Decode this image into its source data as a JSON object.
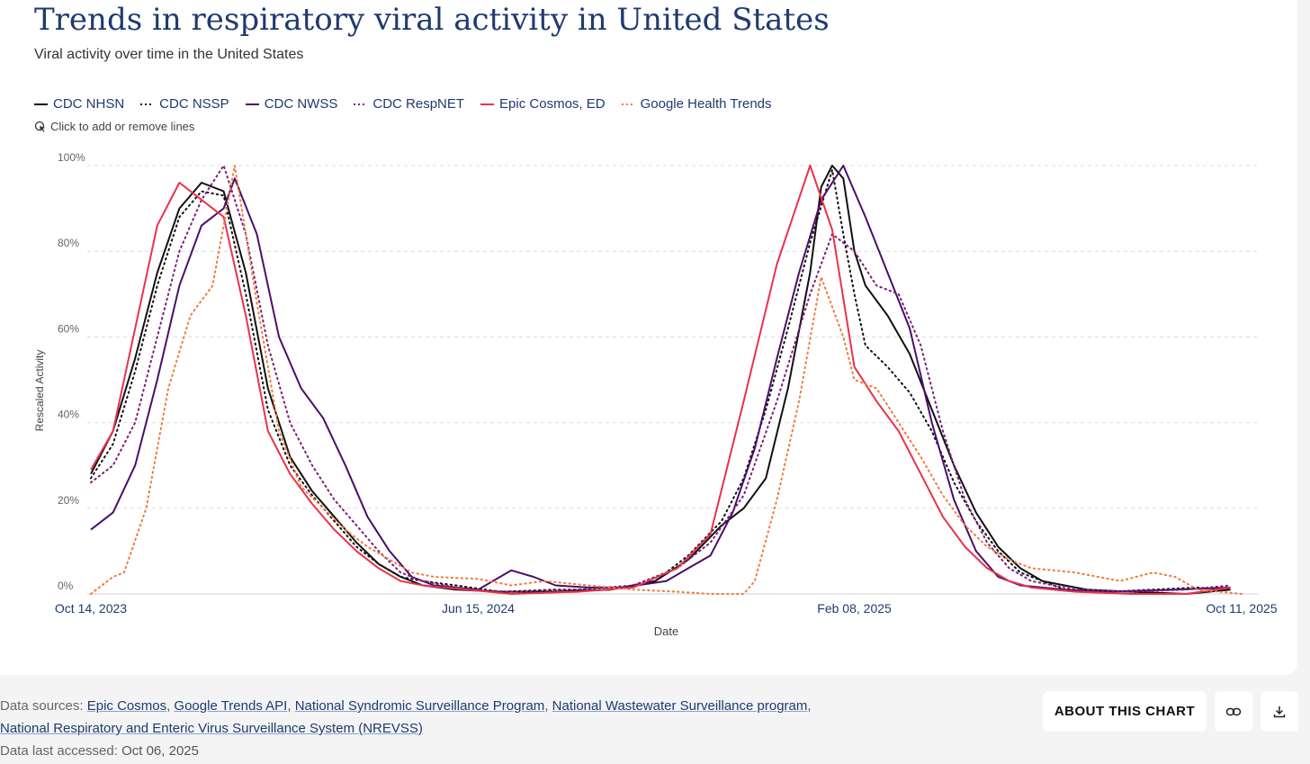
{
  "header": {
    "title": "Trends in respiratory viral activity in United States",
    "subtitle": "Viral activity over time in the United States",
    "hint": "Click to add or remove lines"
  },
  "footer": {
    "sources_label": "Data sources:",
    "sources": [
      "Epic Cosmos",
      "Google Trends API",
      "National Syndromic Surveillance Program",
      "National Wastewater Surveillance program",
      "National Respiratory and Enteric Virus Surveillance System (NREVSS)"
    ],
    "accessed_label": "Data last accessed:",
    "accessed_value": "Oct 06, 2025",
    "about_label": "ABOUT THIS CHART"
  },
  "icons": {
    "hint": "cursor-click-icon",
    "link": "link-icon",
    "download": "download-icon"
  },
  "chart_data": {
    "type": "line",
    "xlabel": "Date",
    "ylabel": "Rescaled Activity",
    "x_ticks": [
      "Oct 14, 2023",
      "Jun 15, 2024",
      "Feb 08, 2025",
      "Oct 11, 2025"
    ],
    "y_ticks": [
      "0%",
      "20%",
      "40%",
      "60%",
      "80%",
      "100%"
    ],
    "ylim": [
      0,
      100
    ],
    "xlim": [
      "2023-10-14",
      "2025-10-11"
    ],
    "grid": "horizontal dashed",
    "legend_position": "top-left",
    "series": [
      {
        "name": "CDC NHSN",
        "color": "#111111",
        "dash": "solid",
        "points": [
          [
            "2023-10-14",
            28
          ],
          [
            "2023-10-28",
            38
          ],
          [
            "2023-11-11",
            55
          ],
          [
            "2023-11-25",
            75
          ],
          [
            "2023-12-09",
            90
          ],
          [
            "2023-12-23",
            96
          ],
          [
            "2024-01-06",
            94
          ],
          [
            "2024-01-20",
            75
          ],
          [
            "2024-02-03",
            48
          ],
          [
            "2024-02-17",
            32
          ],
          [
            "2024-03-02",
            24
          ],
          [
            "2024-03-16",
            18
          ],
          [
            "2024-03-30",
            12
          ],
          [
            "2024-04-13",
            7
          ],
          [
            "2024-04-27",
            4
          ],
          [
            "2024-05-11",
            2
          ],
          [
            "2024-06-01",
            1
          ],
          [
            "2024-06-29",
            0.5
          ],
          [
            "2024-08-03",
            0.5
          ],
          [
            "2024-09-07",
            1
          ],
          [
            "2024-10-05",
            3
          ],
          [
            "2024-10-26",
            8
          ],
          [
            "2024-11-16",
            16
          ],
          [
            "2024-11-30",
            20
          ],
          [
            "2024-12-14",
            27
          ],
          [
            "2024-12-28",
            48
          ],
          [
            "2025-01-11",
            75
          ],
          [
            "2025-01-18",
            95
          ],
          [
            "2025-01-25",
            100
          ],
          [
            "2025-02-01",
            97
          ],
          [
            "2025-02-08",
            80
          ],
          [
            "2025-02-15",
            72
          ],
          [
            "2025-03-01",
            65
          ],
          [
            "2025-03-15",
            56
          ],
          [
            "2025-03-29",
            43
          ],
          [
            "2025-04-12",
            30
          ],
          [
            "2025-04-26",
            19
          ],
          [
            "2025-05-10",
            11
          ],
          [
            "2025-05-24",
            6
          ],
          [
            "2025-06-07",
            3
          ],
          [
            "2025-06-21",
            2
          ],
          [
            "2025-07-05",
            1
          ],
          [
            "2025-08-02",
            0.5
          ],
          [
            "2025-09-06",
            0
          ],
          [
            "2025-10-04",
            1
          ]
        ]
      },
      {
        "name": "CDC NSSP",
        "color": "#111111",
        "dash": "dotted",
        "points": [
          [
            "2023-10-14",
            27
          ],
          [
            "2023-10-28",
            35
          ],
          [
            "2023-11-11",
            52
          ],
          [
            "2023-11-25",
            72
          ],
          [
            "2023-12-09",
            88
          ],
          [
            "2023-12-23",
            94
          ],
          [
            "2024-01-06",
            93
          ],
          [
            "2024-01-20",
            70
          ],
          [
            "2024-02-03",
            43
          ],
          [
            "2024-02-17",
            30
          ],
          [
            "2024-03-02",
            23
          ],
          [
            "2024-03-16",
            17
          ],
          [
            "2024-03-30",
            11
          ],
          [
            "2024-04-13",
            7
          ],
          [
            "2024-04-27",
            4
          ],
          [
            "2024-05-11",
            3
          ],
          [
            "2024-06-01",
            2
          ],
          [
            "2024-06-29",
            0.5
          ],
          [
            "2024-08-03",
            1
          ],
          [
            "2024-09-07",
            1
          ],
          [
            "2024-10-05",
            3
          ],
          [
            "2024-10-26",
            9
          ],
          [
            "2024-11-16",
            17
          ],
          [
            "2024-11-30",
            27
          ],
          [
            "2024-12-14",
            43
          ],
          [
            "2024-12-28",
            62
          ],
          [
            "2025-01-11",
            82
          ],
          [
            "2025-01-25",
            99
          ],
          [
            "2025-02-01",
            84
          ],
          [
            "2025-02-08",
            70
          ],
          [
            "2025-02-15",
            58
          ],
          [
            "2025-03-01",
            53
          ],
          [
            "2025-03-15",
            47
          ],
          [
            "2025-03-29",
            38
          ],
          [
            "2025-04-12",
            26
          ],
          [
            "2025-04-26",
            17
          ],
          [
            "2025-05-10",
            10
          ],
          [
            "2025-05-24",
            5
          ],
          [
            "2025-06-07",
            3
          ],
          [
            "2025-06-21",
            1
          ],
          [
            "2025-07-19",
            0.5
          ],
          [
            "2025-08-16",
            1
          ],
          [
            "2025-09-13",
            1.5
          ],
          [
            "2025-10-04",
            1
          ]
        ]
      },
      {
        "name": "CDC NWSS",
        "color": "#4b0e6b",
        "dash": "solid",
        "points": [
          [
            "2023-10-14",
            15
          ],
          [
            "2023-10-28",
            19
          ],
          [
            "2023-11-11",
            30
          ],
          [
            "2023-11-25",
            50
          ],
          [
            "2023-12-09",
            72
          ],
          [
            "2023-12-23",
            86
          ],
          [
            "2024-01-06",
            90
          ],
          [
            "2024-01-13",
            97
          ],
          [
            "2024-01-27",
            84
          ],
          [
            "2024-02-10",
            60
          ],
          [
            "2024-02-24",
            48
          ],
          [
            "2024-03-09",
            41
          ],
          [
            "2024-03-23",
            30
          ],
          [
            "2024-04-06",
            18
          ],
          [
            "2024-04-20",
            10
          ],
          [
            "2024-05-04",
            4
          ],
          [
            "2024-05-18",
            2
          ],
          [
            "2024-06-15",
            1
          ],
          [
            "2024-07-06",
            5.5
          ],
          [
            "2024-07-20",
            4
          ],
          [
            "2024-08-03",
            2
          ],
          [
            "2024-08-24",
            1.5
          ],
          [
            "2024-09-14",
            1.5
          ],
          [
            "2024-10-12",
            3
          ],
          [
            "2024-10-26",
            6
          ],
          [
            "2024-11-09",
            9
          ],
          [
            "2024-11-23",
            19
          ],
          [
            "2024-12-07",
            34
          ],
          [
            "2024-12-21",
            55
          ],
          [
            "2025-01-04",
            75
          ],
          [
            "2025-01-18",
            92
          ],
          [
            "2025-02-01",
            100
          ],
          [
            "2025-02-15",
            88
          ],
          [
            "2025-03-01",
            75
          ],
          [
            "2025-03-15",
            62
          ],
          [
            "2025-03-29",
            40
          ],
          [
            "2025-04-12",
            22
          ],
          [
            "2025-04-26",
            10
          ],
          [
            "2025-05-10",
            4
          ],
          [
            "2025-05-24",
            2
          ],
          [
            "2025-06-21",
            1
          ],
          [
            "2025-07-19",
            0.5
          ],
          [
            "2025-08-30",
            1
          ],
          [
            "2025-10-04",
            1.5
          ]
        ]
      },
      {
        "name": "CDC RespNET",
        "color": "#7b1f78",
        "dash": "dotted",
        "points": [
          [
            "2023-10-14",
            26
          ],
          [
            "2023-10-28",
            30
          ],
          [
            "2023-11-11",
            40
          ],
          [
            "2023-11-25",
            60
          ],
          [
            "2023-12-09",
            80
          ],
          [
            "2023-12-23",
            92
          ],
          [
            "2024-01-06",
            100
          ],
          [
            "2024-01-20",
            84
          ],
          [
            "2024-02-03",
            58
          ],
          [
            "2024-02-17",
            40
          ],
          [
            "2024-03-02",
            30
          ],
          [
            "2024-03-16",
            22
          ],
          [
            "2024-03-30",
            16
          ],
          [
            "2024-04-13",
            10
          ],
          [
            "2024-04-27",
            5
          ],
          [
            "2024-05-11",
            3
          ],
          [
            "2024-06-08",
            1
          ],
          [
            "2024-07-06",
            0.5
          ],
          [
            "2024-08-17",
            1
          ],
          [
            "2024-09-21",
            2
          ],
          [
            "2024-10-19",
            6
          ],
          [
            "2024-11-09",
            12
          ],
          [
            "2024-11-30",
            23
          ],
          [
            "2024-12-21",
            45
          ],
          [
            "2025-01-11",
            70
          ],
          [
            "2025-01-25",
            84
          ],
          [
            "2025-02-08",
            80
          ],
          [
            "2025-02-22",
            72
          ],
          [
            "2025-03-08",
            70
          ],
          [
            "2025-03-22",
            58
          ],
          [
            "2025-04-05",
            38
          ],
          [
            "2025-04-19",
            22
          ],
          [
            "2025-05-03",
            12
          ],
          [
            "2025-05-17",
            6
          ],
          [
            "2025-05-31",
            3
          ],
          [
            "2025-06-28",
            1
          ],
          [
            "2025-08-02",
            0.5
          ],
          [
            "2025-09-06",
            1
          ],
          [
            "2025-10-04",
            2
          ]
        ]
      },
      {
        "name": "Epic Cosmos, ED",
        "color": "#e8334a",
        "dash": "solid",
        "points": [
          [
            "2023-10-14",
            29
          ],
          [
            "2023-10-28",
            38
          ],
          [
            "2023-11-11",
            62
          ],
          [
            "2023-11-25",
            86
          ],
          [
            "2023-12-09",
            96
          ],
          [
            "2023-12-23",
            92
          ],
          [
            "2024-01-06",
            88
          ],
          [
            "2024-01-20",
            65
          ],
          [
            "2024-02-03",
            38
          ],
          [
            "2024-02-17",
            28
          ],
          [
            "2024-03-02",
            21
          ],
          [
            "2024-03-16",
            15
          ],
          [
            "2024-03-30",
            10
          ],
          [
            "2024-04-13",
            6
          ],
          [
            "2024-04-27",
            3
          ],
          [
            "2024-05-11",
            2
          ],
          [
            "2024-06-08",
            1
          ],
          [
            "2024-07-06",
            0
          ],
          [
            "2024-08-17",
            0.5
          ],
          [
            "2024-09-21",
            1.5
          ],
          [
            "2024-10-19",
            6
          ],
          [
            "2024-11-09",
            14
          ],
          [
            "2024-11-30",
            45
          ],
          [
            "2024-12-21",
            77
          ],
          [
            "2025-01-11",
            100
          ],
          [
            "2025-01-25",
            85
          ],
          [
            "2025-02-08",
            53
          ],
          [
            "2025-02-22",
            45
          ],
          [
            "2025-03-08",
            38
          ],
          [
            "2025-03-22",
            28
          ],
          [
            "2025-04-05",
            18
          ],
          [
            "2025-04-19",
            11
          ],
          [
            "2025-05-03",
            6
          ],
          [
            "2025-05-17",
            3
          ],
          [
            "2025-05-31",
            1.5
          ],
          [
            "2025-06-28",
            0.5
          ],
          [
            "2025-08-02",
            0
          ],
          [
            "2025-09-06",
            0
          ],
          [
            "2025-10-04",
            1.5
          ]
        ]
      },
      {
        "name": "Google Health Trends",
        "color": "#f07b3f",
        "dash": "dotted",
        "points": [
          [
            "2023-10-14",
            0
          ],
          [
            "2023-10-28",
            4
          ],
          [
            "2023-11-04",
            5
          ],
          [
            "2023-11-18",
            20
          ],
          [
            "2023-12-02",
            48
          ],
          [
            "2023-12-16",
            65
          ],
          [
            "2023-12-30",
            72
          ],
          [
            "2024-01-13",
            100
          ],
          [
            "2024-01-27",
            68
          ],
          [
            "2024-02-10",
            38
          ],
          [
            "2024-02-24",
            25
          ],
          [
            "2024-03-09",
            20
          ],
          [
            "2024-03-23",
            15
          ],
          [
            "2024-04-06",
            11
          ],
          [
            "2024-04-20",
            8
          ],
          [
            "2024-05-04",
            5
          ],
          [
            "2024-05-18",
            4
          ],
          [
            "2024-06-15",
            3.5
          ],
          [
            "2024-07-06",
            2
          ],
          [
            "2024-07-27",
            3
          ],
          [
            "2024-08-24",
            2
          ],
          [
            "2024-09-21",
            1
          ],
          [
            "2024-10-19",
            0.5
          ],
          [
            "2024-11-09",
            0
          ],
          [
            "2024-11-30",
            0
          ],
          [
            "2024-12-07",
            3
          ],
          [
            "2024-12-21",
            22
          ],
          [
            "2025-01-04",
            45
          ],
          [
            "2025-01-18",
            74
          ],
          [
            "2025-02-01",
            60
          ],
          [
            "2025-02-08",
            50
          ],
          [
            "2025-02-22",
            48
          ],
          [
            "2025-03-08",
            40
          ],
          [
            "2025-03-22",
            32
          ],
          [
            "2025-04-05",
            23
          ],
          [
            "2025-04-19",
            16
          ],
          [
            "2025-05-03",
            11
          ],
          [
            "2025-05-17",
            8
          ],
          [
            "2025-05-31",
            6
          ],
          [
            "2025-06-28",
            5
          ],
          [
            "2025-07-26",
            3
          ],
          [
            "2025-08-16",
            5
          ],
          [
            "2025-08-30",
            4
          ],
          [
            "2025-09-13",
            1
          ],
          [
            "2025-10-11",
            0
          ]
        ]
      }
    ]
  }
}
